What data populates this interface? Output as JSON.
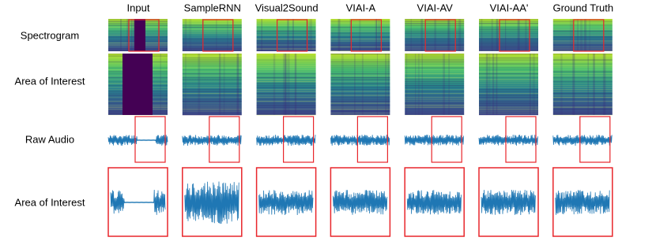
{
  "columns": [
    "Input",
    "SampleRNN",
    "Visual2Sound",
    "VIAI-A",
    "VIAI-AV",
    "VIAI-AA'",
    "Ground Truth"
  ],
  "rows": [
    "Spectrogram",
    "Area of Interest",
    "Raw Audio",
    "Area of Interest"
  ]
}
